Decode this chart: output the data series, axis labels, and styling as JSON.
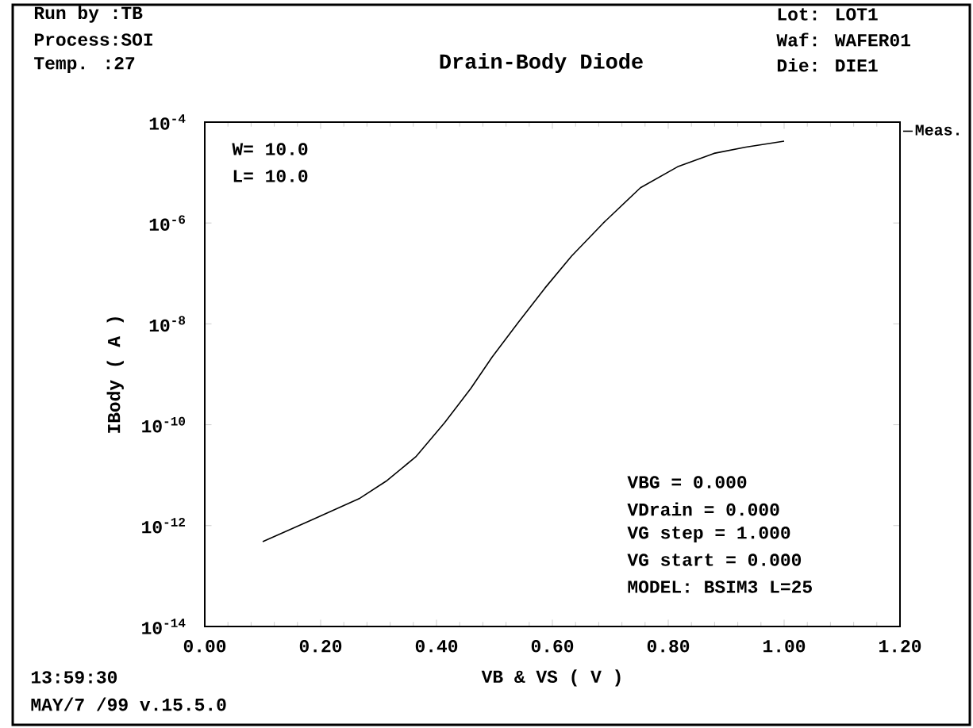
{
  "chart_data": {
    "type": "line",
    "title": "Drain-Body Diode",
    "xlabel": "VB & VS ( V )",
    "ylabel": "IBody ( A )",
    "series": [
      {
        "name": "Meas.",
        "color": "#000000",
        "x": [
          0.1,
          0.185,
          0.268,
          0.313,
          0.364,
          0.414,
          0.459,
          0.496,
          0.542,
          0.587,
          0.633,
          0.688,
          0.752,
          0.816,
          0.879,
          0.934,
          1.0
        ],
        "values": [
          4.8e-13,
          1.3e-12,
          3.5e-12,
          7.6e-12,
          2.3e-11,
          1.1e-10,
          5.2e-10,
          2.2e-09,
          1.1e-08,
          5.1e-08,
          2.2e-07,
          1e-06,
          5e-06,
          1.3e-05,
          2.4e-05,
          3.2e-05,
          4.2e-05
        ]
      }
    ],
    "xlim": [
      0,
      1.2
    ],
    "xticks": [
      {
        "value": 0,
        "label": "0.00"
      },
      {
        "value": 0.2,
        "label": "0.20"
      },
      {
        "value": 0.4,
        "label": "0.40"
      },
      {
        "value": 0.6,
        "label": "0.60"
      },
      {
        "value": 0.8,
        "label": "0.80"
      },
      {
        "value": 1.0,
        "label": "1.00"
      },
      {
        "value": 1.2,
        "label": "1.20"
      }
    ],
    "ylim": [
      1e-14,
      0.0001
    ],
    "yticks": [
      {
        "value": 1e-14,
        "label": "10$^{-14}$"
      },
      {
        "value": 1e-12,
        "label": "10$^{-12}$"
      },
      {
        "value": 1e-10,
        "label": "10$^{-10}$"
      },
      {
        "value": 1e-08,
        "label": "10$^{-8}$"
      },
      {
        "value": 1e-06,
        "label": "10$^{-6}$"
      },
      {
        "value": 0.0001,
        "label": "10$^{-4}$"
      }
    ],
    "log": "y",
    "legend": "top right",
    "marker": "none",
    "line_style": "solid",
    "annotations": [
      "Run by :TB",
      "Process:SOI",
      "Temp.  :27",
      "Lot: LOT1",
      "Waf: WAFER01",
      "Die: DIE1",
      "W= 10.0",
      "L= 10.0",
      "VBG        = 0.000",
      "VDrain     = 0.000",
      "VG  step  = 1.000",
      "VG  start = 0.000",
      "MODEL: BSIM3 L=25",
      "13:59:30",
      "MAY/7 /99 v.15.5.0"
    ]
  }
}
